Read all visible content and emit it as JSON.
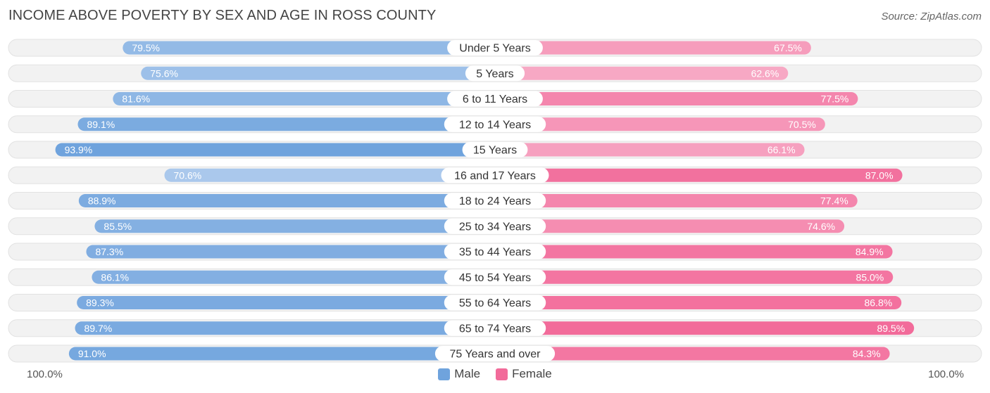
{
  "header": {
    "title": "INCOME ABOVE POVERTY BY SEX AND AGE IN ROSS COUNTY",
    "source": "Source: ZipAtlas.com"
  },
  "axis": {
    "left_label": "100.0%",
    "right_label": "100.0%"
  },
  "legend": {
    "male_label": "Male",
    "female_label": "Female"
  },
  "colors": {
    "male_strong": "#6fa3dd",
    "male_light": "#aac8ec",
    "female_strong": "#f26b9a",
    "female_light": "#f7a8c4",
    "row_bg": "#f2f2f2",
    "row_border": "#e2e2e2"
  },
  "chart_data": {
    "type": "bar",
    "orientation": "horizontal-diverging",
    "title": "INCOME ABOVE POVERTY BY SEX AND AGE IN ROSS COUNTY",
    "xlim": [
      0,
      100
    ],
    "categories": [
      "Under 5 Years",
      "5 Years",
      "6 to 11 Years",
      "12 to 14 Years",
      "15 Years",
      "16 and 17 Years",
      "18 to 24 Years",
      "25 to 34 Years",
      "35 to 44 Years",
      "45 to 54 Years",
      "55 to 64 Years",
      "65 to 74 Years",
      "75 Years and over"
    ],
    "series": [
      {
        "name": "Male",
        "values": [
          79.5,
          75.6,
          81.6,
          89.1,
          93.9,
          70.6,
          88.9,
          85.5,
          87.3,
          86.1,
          89.3,
          89.7,
          91.0
        ],
        "labels": [
          "79.5%",
          "75.6%",
          "81.6%",
          "89.1%",
          "93.9%",
          "70.6%",
          "88.9%",
          "85.5%",
          "87.3%",
          "86.1%",
          "89.3%",
          "89.7%",
          "91.0%"
        ]
      },
      {
        "name": "Female",
        "values": [
          67.5,
          62.6,
          77.5,
          70.5,
          66.1,
          87.0,
          77.4,
          74.6,
          84.9,
          85.0,
          86.8,
          89.5,
          84.3
        ],
        "labels": [
          "67.5%",
          "62.6%",
          "77.5%",
          "70.5%",
          "66.1%",
          "87.0%",
          "77.4%",
          "74.6%",
          "84.9%",
          "85.0%",
          "86.8%",
          "89.5%",
          "84.3%"
        ]
      }
    ]
  }
}
